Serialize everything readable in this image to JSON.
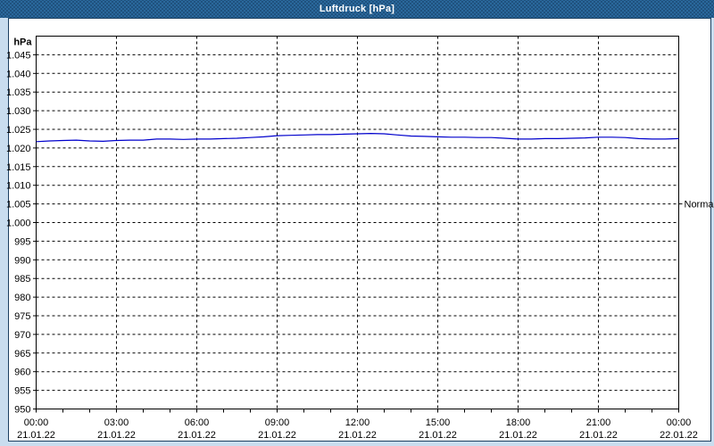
{
  "title": "Luftdruck [hPa]",
  "colors": {
    "titlebar": "#2a689c",
    "frame_bg": "#c9ddef",
    "frame_border": "#1c3f60",
    "plot_border": "#000000",
    "grid": "#000000",
    "line": "#0000cc",
    "text": "#000000"
  },
  "chart_data": {
    "type": "line",
    "title": "Luftdruck [hPa]",
    "y_unit_label": "hPa",
    "ylim": [
      950,
      1050
    ],
    "xlim_hours": [
      0,
      24
    ],
    "grid": "dashed",
    "legend": "none",
    "y_ticks": [
      {
        "value": 1045,
        "label": "1.045"
      },
      {
        "value": 1040,
        "label": "1.040"
      },
      {
        "value": 1035,
        "label": "1.035"
      },
      {
        "value": 1030,
        "label": "1.030"
      },
      {
        "value": 1025,
        "label": "1.025"
      },
      {
        "value": 1020,
        "label": "1.020"
      },
      {
        "value": 1015,
        "label": "1.015"
      },
      {
        "value": 1010,
        "label": "1.010"
      },
      {
        "value": 1005,
        "label": "1.005"
      },
      {
        "value": 1000,
        "label": "1.000"
      },
      {
        "value": 995,
        "label": "995"
      },
      {
        "value": 990,
        "label": "990"
      },
      {
        "value": 985,
        "label": "985"
      },
      {
        "value": 980,
        "label": "980"
      },
      {
        "value": 975,
        "label": "975"
      },
      {
        "value": 970,
        "label": "970"
      },
      {
        "value": 965,
        "label": "965"
      },
      {
        "value": 960,
        "label": "960"
      },
      {
        "value": 955,
        "label": "955"
      },
      {
        "value": 950,
        "label": "950"
      }
    ],
    "x_ticks": [
      {
        "hour": 0,
        "time": "00:00",
        "date": "21.01.22"
      },
      {
        "hour": 3,
        "time": "03:00",
        "date": "21.01.22"
      },
      {
        "hour": 6,
        "time": "06:00",
        "date": "21.01.22"
      },
      {
        "hour": 9,
        "time": "09:00",
        "date": "21.01.22"
      },
      {
        "hour": 12,
        "time": "12:00",
        "date": "21.01.22"
      },
      {
        "hour": 15,
        "time": "15:00",
        "date": "21.01.22"
      },
      {
        "hour": 18,
        "time": "18:00",
        "date": "21.01.22"
      },
      {
        "hour": 21,
        "time": "21:00",
        "date": "21.01.22"
      },
      {
        "hour": 24,
        "time": "00:00",
        "date": "22.01.22"
      }
    ],
    "annotations": [
      {
        "label": "Normal",
        "value": 1005,
        "side": "right"
      }
    ],
    "series": [
      {
        "name": "Luftdruck",
        "x_hours": [
          0,
          0.5,
          1,
          1.5,
          2,
          2.5,
          3,
          3.5,
          4,
          4.5,
          5,
          5.5,
          6,
          6.5,
          7,
          7.5,
          8,
          8.5,
          9,
          9.5,
          10,
          10.5,
          11,
          11.5,
          12,
          12.5,
          13,
          13.5,
          14,
          14.5,
          15,
          15.5,
          16,
          16.5,
          17,
          17.5,
          18,
          18.5,
          19,
          19.5,
          20,
          20.5,
          21,
          21.5,
          22,
          22.5,
          23,
          23.5,
          24
        ],
        "values": [
          1021.7,
          1021.9,
          1022.0,
          1022.1,
          1021.9,
          1021.8,
          1022.0,
          1022.1,
          1022.1,
          1022.4,
          1022.4,
          1022.3,
          1022.4,
          1022.4,
          1022.5,
          1022.6,
          1022.8,
          1023.0,
          1023.3,
          1023.4,
          1023.5,
          1023.6,
          1023.6,
          1023.7,
          1023.8,
          1023.9,
          1023.8,
          1023.5,
          1023.2,
          1023.1,
          1023.0,
          1022.9,
          1022.9,
          1022.8,
          1022.8,
          1022.6,
          1022.4,
          1022.4,
          1022.5,
          1022.5,
          1022.6,
          1022.7,
          1022.9,
          1022.9,
          1022.8,
          1022.5,
          1022.4,
          1022.4,
          1022.5
        ]
      }
    ]
  }
}
